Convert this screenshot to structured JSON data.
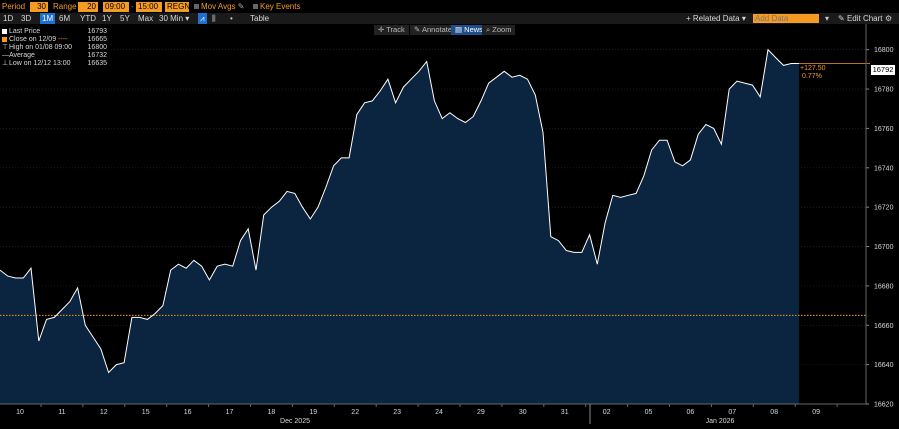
{
  "toolbar": {
    "period_label": "Period",
    "period_value": "30",
    "range_label": "Range",
    "range_value": "20",
    "time_from": "09:00",
    "time_sep": "-",
    "time_to": "15:00",
    "session": "REGN",
    "mov_avgs": "Mov Avgs",
    "key_events": "Key Events",
    "periods": [
      "1D",
      "3D",
      "1M",
      "6M",
      "YTD",
      "1Y",
      "5Y",
      "Max"
    ],
    "selected_period": "1M",
    "interval": "30 Min",
    "table": "Table",
    "related_data": "Related Data",
    "add_data_placeholder": "Add Data",
    "edit_chart": "Edit Chart"
  },
  "chart_tools": [
    "Track",
    "Annotate",
    "News",
    "Zoom"
  ],
  "legend": [
    {
      "label": "Last Price",
      "value": "16793",
      "color": "#ffffff"
    },
    {
      "label": "Close on 12/09",
      "value": "16665",
      "color": "#f59a23"
    },
    {
      "label": "High on 01/08 09:00",
      "value": "16800",
      "color": "#d8d8d8"
    },
    {
      "label": "Average",
      "value": "16732",
      "color": "#d8d8d8"
    },
    {
      "label": "Low on 12/12 13:00",
      "value": "16635",
      "color": "#d8d8d8"
    }
  ],
  "annotations": {
    "last_price_tag": "16792",
    "change": "+127.50",
    "change_pct": "0.77%"
  },
  "colors": {
    "accent": "#f59a23",
    "area_fill": "#0b2440",
    "line": "#ffffff",
    "selected": "#1f6fd1"
  },
  "chart_data": {
    "type": "area",
    "ylim": [
      16620,
      16810
    ],
    "yticks": [
      16620,
      16640,
      16660,
      16680,
      16700,
      16720,
      16740,
      16760,
      16780,
      16800
    ],
    "xlabels": [
      "10",
      "11",
      "12",
      "15",
      "16",
      "17",
      "18",
      "19",
      "22",
      "23",
      "24",
      "29",
      "30",
      "31",
      "02",
      "05",
      "06",
      "07",
      "08",
      "09"
    ],
    "month_labels": [
      "Dec 2025",
      "Jan 2026"
    ],
    "reference_line": {
      "label": "Close on 12/09",
      "value": 16665
    },
    "series": [
      {
        "values": [
          16688,
          16685,
          16684,
          16684,
          16689,
          16652,
          16663,
          16664,
          16668,
          16672,
          16679,
          16660,
          16654,
          16648,
          16636,
          16640,
          16641,
          16664,
          16664,
          16663,
          16666,
          16670,
          16688,
          16691,
          16689,
          16693,
          16690,
          16683,
          16690,
          16691,
          16690,
          16703,
          16709,
          16688,
          16716,
          16720,
          16723,
          16728,
          16727,
          16720,
          16714,
          16720,
          16730,
          16741,
          16745,
          16745,
          16767,
          16773,
          16774,
          16779,
          16785,
          16773,
          16781,
          16785,
          16789,
          16794,
          16774,
          16765,
          16768,
          16765,
          16763,
          16766,
          16774,
          16783,
          16786,
          16789,
          16786,
          16787,
          16785,
          16777,
          16758,
          16705,
          16703,
          16698,
          16697,
          16697,
          16706,
          16691,
          16712,
          16726,
          16725,
          16726,
          16727,
          16736,
          16749,
          16754,
          16754,
          16743,
          16741,
          16744,
          16757,
          16762,
          16760,
          16752,
          16780,
          16784,
          16783,
          16782,
          16776,
          16800,
          16796,
          16792,
          16793,
          16793
        ]
      }
    ]
  }
}
